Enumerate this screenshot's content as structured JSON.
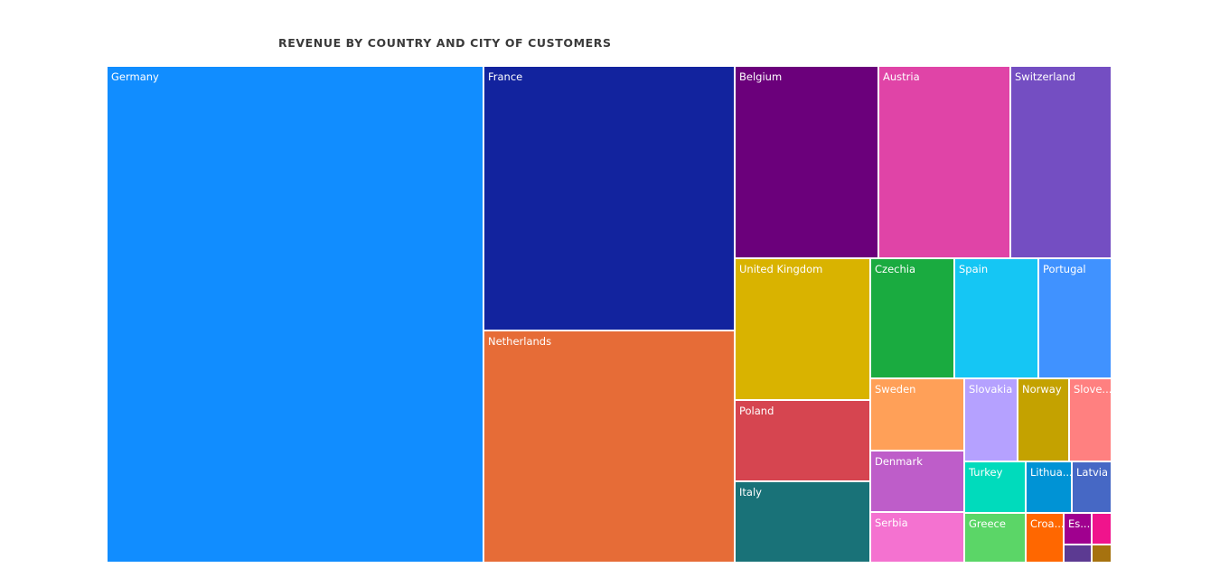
{
  "chart_data": {
    "type": "treemap",
    "title": "REVENUE BY COUNTRY AND CITY OF CUSTOMERS",
    "tiles": [
      {
        "label": "Germany",
        "color": "#118DFF"
      },
      {
        "label": "France",
        "color": "#12239E"
      },
      {
        "label": "Netherlands",
        "color": "#E66C37"
      },
      {
        "label": "Belgium",
        "color": "#6B007B"
      },
      {
        "label": "Austria",
        "color": "#E044A7"
      },
      {
        "label": "Switzerland",
        "color": "#744EC2"
      },
      {
        "label": "United Kingdom",
        "color": "#D9B300"
      },
      {
        "label": "Poland",
        "color": "#D64550"
      },
      {
        "label": "Italy",
        "color": "#197278"
      },
      {
        "label": "Czechia",
        "color": "#1AAB40"
      },
      {
        "label": "Spain",
        "color": "#15C6F4"
      },
      {
        "label": "Portugal",
        "color": "#4092FF"
      },
      {
        "label": "Sweden",
        "color": "#FFA058"
      },
      {
        "label": "Denmark",
        "color": "#BE5DC9"
      },
      {
        "label": "Serbia",
        "color": "#F472D0"
      },
      {
        "label": "Slovakia",
        "color": "#B5A1FF"
      },
      {
        "label": "Norway",
        "color": "#C4A200"
      },
      {
        "label": "Slove...",
        "color": "#FF8080"
      },
      {
        "label": "Turkey",
        "color": "#00DBBC"
      },
      {
        "label": "Lithua...",
        "color": "#0093D5"
      },
      {
        "label": "Latvia",
        "color": "#4668C5"
      },
      {
        "label": "Greece",
        "color": "#5BD667"
      },
      {
        "label": "Croa...",
        "color": "#FF6700"
      },
      {
        "label": "Es...",
        "color": "#A0008F"
      },
      {
        "label": "",
        "color": "#F0148C"
      },
      {
        "label": "",
        "color": "#5C3A92"
      },
      {
        "label": "",
        "color": "#A6720F"
      }
    ]
  }
}
